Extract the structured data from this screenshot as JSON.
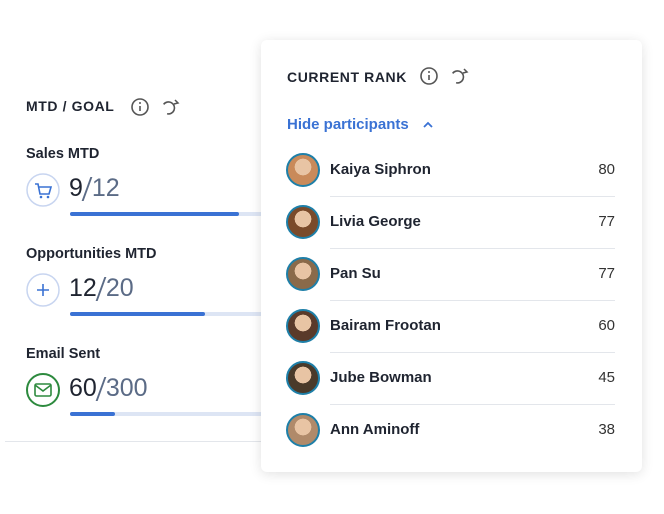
{
  "left_panel": {
    "title": "MTD / GOAL",
    "metrics": [
      {
        "label": "Sales MTD",
        "current": 9,
        "goal": 12,
        "icon": "cart"
      },
      {
        "label": "Opportunities MTD",
        "current": 12,
        "goal": 20,
        "icon": "plus"
      },
      {
        "label": "Email Sent",
        "current": 60,
        "goal": 300,
        "icon": "mail"
      }
    ]
  },
  "rank_card": {
    "title": "CURRENT RANK",
    "toggle": "Hide participants",
    "participants": [
      {
        "name": "Kaiya Siphron",
        "score": 80
      },
      {
        "name": "Livia George",
        "score": 77
      },
      {
        "name": "Pan Su",
        "score": 77
      },
      {
        "name": "Bairam Frootan",
        "score": 60
      },
      {
        "name": "Jube Bowman",
        "score": 45
      },
      {
        "name": "Ann Aminoff",
        "score": 38
      }
    ]
  }
}
